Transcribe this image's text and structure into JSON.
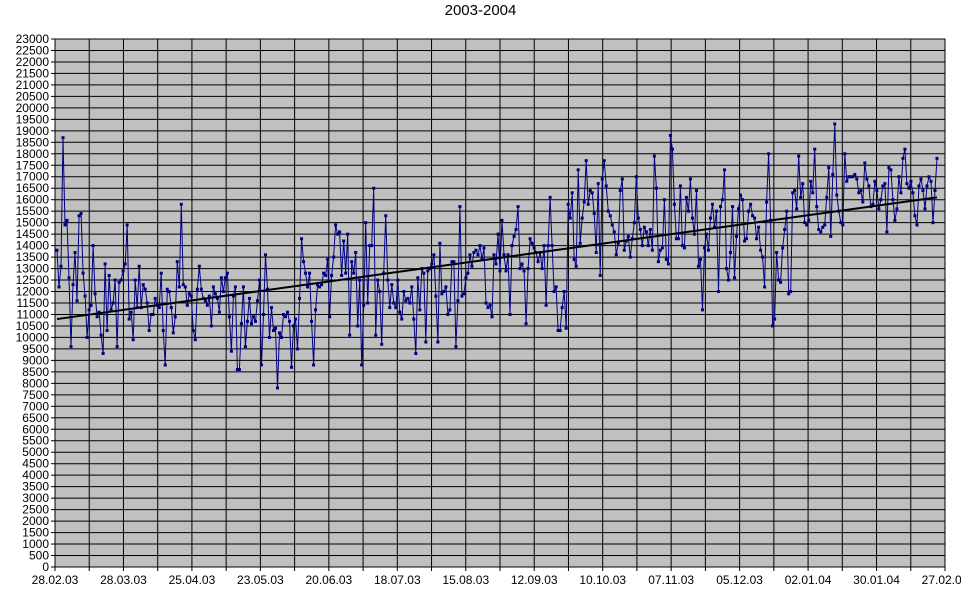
{
  "chart_data": {
    "type": "line",
    "title": "2003-2004",
    "xlabel": "",
    "ylabel": "",
    "ylim": [
      0,
      23000
    ],
    "y_step": 500,
    "x_range": [
      "28.02.03",
      "28.02.04"
    ],
    "x_tick_labels": [
      "28.02.03",
      "28.03.03",
      "25.04.03",
      "23.05.03",
      "20.06.03",
      "18.07.03",
      "15.08.03",
      "12.09.03",
      "10.10.03",
      "07.11.03",
      "05.12.03",
      "02.01.04",
      "30.01.04",
      "27.02.04"
    ],
    "grid": "on",
    "plot_background": "#c0c0c0",
    "series_color": "#000080",
    "trend_color": "#000000",
    "series": [
      {
        "values": [
          13800,
          12200,
          13100,
          18700,
          14900,
          15100,
          12600,
          9600,
          12300,
          13700,
          11600,
          15300,
          15400,
          12800,
          11800,
          10000,
          11200,
          11400,
          14000,
          11900,
          10900,
          11100,
          10100,
          9300,
          13200,
          10300,
          12700,
          11200,
          11500,
          12500,
          9600,
          12400,
          12500,
          12900,
          13200,
          14900,
          10800,
          11100,
          9900,
          12500,
          11300,
          13100,
          11300,
          12300,
          12100,
          11500,
          10300,
          11000,
          11000,
          11700,
          11400,
          11300,
          12800,
          10300,
          8800,
          12100,
          12000,
          11300,
          10200,
          10900,
          13300,
          12200,
          15800,
          12300,
          12200,
          11400,
          11900,
          11800,
          10300,
          9900,
          12100,
          13100,
          12100,
          11700,
          11600,
          11400,
          11800,
          10500,
          12200,
          11900,
          11700,
          11100,
          12600,
          12000,
          12600,
          12800,
          10900,
          9400,
          11800,
          12200,
          8600,
          8600,
          10600,
          12200,
          9600,
          10700,
          11700,
          10600,
          10900,
          10700,
          11600,
          12500,
          8800,
          11000,
          13600,
          12100,
          10000,
          11300,
          10300,
          10400,
          7800,
          10200,
          10000,
          11000,
          10900,
          11100,
          10700,
          8700,
          10500,
          10800,
          9500,
          11700,
          14300,
          13300,
          12800,
          12200,
          12800,
          10700,
          8800,
          11200,
          12300,
          12200,
          12300,
          12800,
          12700,
          13400,
          10900,
          12700,
          13500,
          14900,
          14500,
          14600,
          12700,
          14200,
          12800,
          14500,
          10100,
          13300,
          12800,
          13700,
          10500,
          12500,
          8800,
          11400,
          15000,
          11500,
          14000,
          14000,
          16500,
          10100,
          12500,
          12000,
          9700,
          12800,
          15300,
          12500,
          11300,
          12300,
          11500,
          11300,
          12500,
          11100,
          10800,
          12000,
          11600,
          11700,
          11500,
          12200,
          10800,
          9300,
          12600,
          11200,
          13000,
          12800,
          9800,
          12900,
          13000,
          13200,
          13600,
          11800,
          9800,
          14100,
          11900,
          12000,
          12200,
          11000,
          11200,
          13300,
          13300,
          9600,
          11600,
          15700,
          11800,
          11900,
          12600,
          12800,
          13600,
          13100,
          13700,
          13800,
          13600,
          14000,
          13400,
          13900,
          11500,
          11300,
          11400,
          10900,
          13600,
          13200,
          14500,
          12900,
          15100,
          13600,
          12900,
          13600,
          11000,
          14000,
          14400,
          14700,
          15700,
          13000,
          13200,
          12900,
          10600,
          13000,
          14300,
          14100,
          13900,
          13700,
          13300,
          13700,
          13000,
          14000,
          11400,
          14000,
          16100,
          14000,
          12000,
          12200,
          10300,
          10300,
          11300,
          12000,
          10400,
          15800,
          15200,
          16300,
          13400,
          13100,
          17300,
          14100,
          15200,
          15900,
          17700,
          15800,
          16400,
          16300,
          15400,
          13700,
          16700,
          12700,
          16900,
          17700,
          16600,
          15500,
          15300,
          14900,
          14600,
          13600,
          14100,
          16400,
          16900,
          13800,
          14200,
          14400,
          13500,
          14300,
          15000,
          17000,
          15200,
          14700,
          14000,
          14800,
          14600,
          14000,
          14700,
          13800,
          17900,
          16500,
          13300,
          13800,
          13900,
          16000,
          13400,
          13200,
          18800,
          18200,
          15800,
          14300,
          14300,
          16600,
          14000,
          13900,
          16100,
          15500,
          16900,
          15200,
          14500,
          16400,
          13100,
          13400,
          11200,
          13900,
          14500,
          13800,
          15200,
          15800,
          14800,
          15500,
          12000,
          15700,
          16000,
          17300,
          13000,
          12500,
          13700,
          15700,
          12600,
          14400,
          15600,
          16200,
          16000,
          14200,
          14300,
          15500,
          15800,
          15300,
          15200,
          14300,
          14800,
          13800,
          13500,
          12200,
          15900,
          18000,
          15100,
          10500,
          10800,
          13700,
          12500,
          12400,
          13900,
          14700,
          15500,
          11900,
          12000,
          16300,
          16400,
          15600,
          17900,
          16100,
          16700,
          15000,
          14900,
          15100,
          16800,
          16300,
          18200,
          15700,
          14700,
          14600,
          14800,
          14900,
          16100,
          17400,
          14400,
          17100,
          19300,
          16200,
          15500,
          15000,
          14900,
          18000,
          16800,
          17000,
          17000,
          17000,
          17100,
          16900,
          16300,
          16400,
          15900,
          17600,
          16900,
          16600,
          15700,
          15800,
          16800,
          16400,
          15600,
          16000,
          16600,
          16700,
          14600,
          17400,
          17300,
          16000,
          15100,
          15600,
          17000,
          16300,
          17800,
          18200,
          16700,
          16500,
          16800,
          16300,
          15300,
          14900,
          16600,
          16900,
          16400,
          15600,
          16600,
          17000,
          16800,
          15000,
          16400,
          17800
        ]
      },
      {
        "values": [
          10800,
          16100
        ]
      }
    ]
  }
}
